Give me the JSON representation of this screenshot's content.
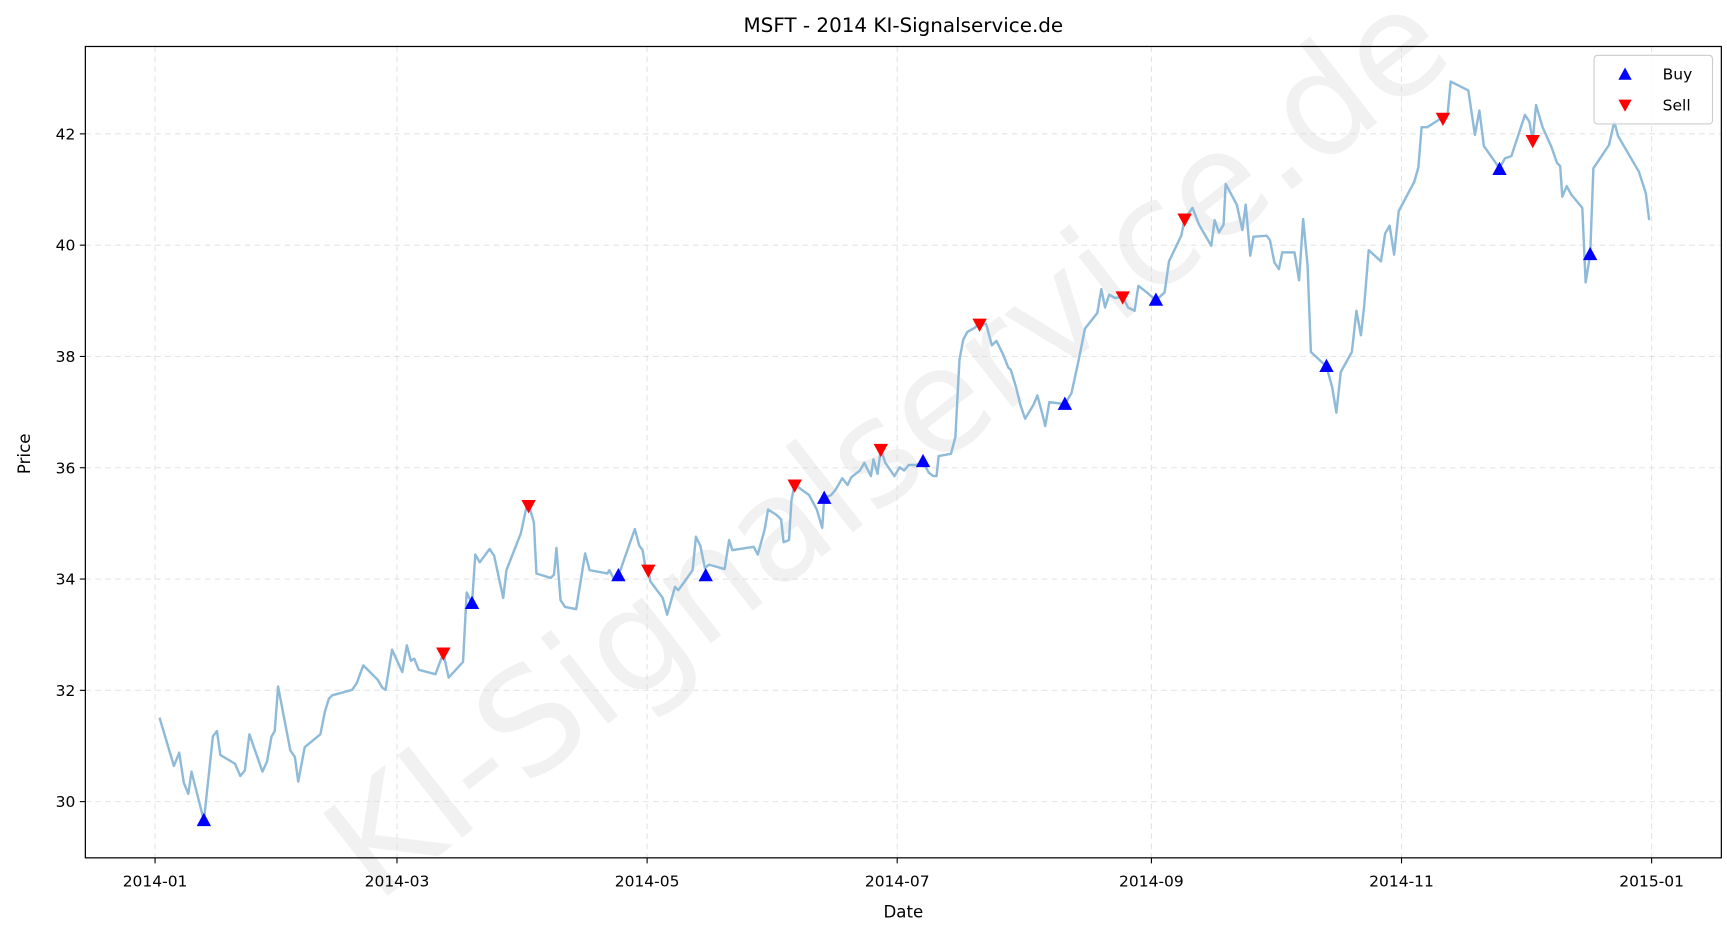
{
  "chart_data": {
    "type": "line",
    "title": "MSFT - 2014 KI-Signalservice.de",
    "xlabel": "Date",
    "ylabel": "Price",
    "watermark": "KI-Signalservice.de",
    "x_units": "days since 2014-01-01",
    "xlim": [
      -17,
      382
    ],
    "ylim": [
      28.99,
      43.57
    ],
    "grid": true,
    "legend_position": "top-right",
    "x_ticks": [
      {
        "day": 0,
        "label": "2014-01"
      },
      {
        "day": 59,
        "label": "2014-03"
      },
      {
        "day": 120,
        "label": "2014-05"
      },
      {
        "day": 181,
        "label": "2014-07"
      },
      {
        "day": 243,
        "label": "2014-09"
      },
      {
        "day": 304,
        "label": "2014-11"
      },
      {
        "day": 365,
        "label": "2015-01"
      }
    ],
    "y_ticks": [
      {
        "value": 30,
        "label": "30"
      },
      {
        "value": 32,
        "label": "32"
      },
      {
        "value": 34,
        "label": "34"
      },
      {
        "value": 36,
        "label": "36"
      },
      {
        "value": 38,
        "label": "38"
      },
      {
        "value": 40,
        "label": "40"
      },
      {
        "value": 42,
        "label": "42"
      }
    ],
    "colors": {
      "line": "#8fbbd9",
      "buy": "#0000ff",
      "sell": "#ff0000"
    },
    "series": [
      {
        "name": "Price",
        "points": [
          [
            1.1,
            31.51
          ],
          [
            4.6,
            30.64
          ],
          [
            5.9,
            30.88
          ],
          [
            7.0,
            30.34
          ],
          [
            8.1,
            30.14
          ],
          [
            8.9,
            30.54
          ],
          [
            11.9,
            29.66
          ],
          [
            14.1,
            31.17
          ],
          [
            15.1,
            31.27
          ],
          [
            15.9,
            30.84
          ],
          [
            19.5,
            30.68
          ],
          [
            20.8,
            30.46
          ],
          [
            21.9,
            30.56
          ],
          [
            23.0,
            31.21
          ],
          [
            26.2,
            30.54
          ],
          [
            27.3,
            30.72
          ],
          [
            28.4,
            31.17
          ],
          [
            29.2,
            31.27
          ],
          [
            30.0,
            32.07
          ],
          [
            33.0,
            30.92
          ],
          [
            34.1,
            30.8
          ],
          [
            34.9,
            30.36
          ],
          [
            36.5,
            30.98
          ],
          [
            40.3,
            31.21
          ],
          [
            41.4,
            31.61
          ],
          [
            42.4,
            31.85
          ],
          [
            43.2,
            31.91
          ],
          [
            48.1,
            32.01
          ],
          [
            49.2,
            32.13
          ],
          [
            50.8,
            32.45
          ],
          [
            54.3,
            32.19
          ],
          [
            55.4,
            32.05
          ],
          [
            56.2,
            32.01
          ],
          [
            57.8,
            32.73
          ],
          [
            60.3,
            32.33
          ],
          [
            61.4,
            32.81
          ],
          [
            62.4,
            32.53
          ],
          [
            63.2,
            32.57
          ],
          [
            64.3,
            32.37
          ],
          [
            68.4,
            32.29
          ],
          [
            70.3,
            32.67
          ],
          [
            71.6,
            32.23
          ],
          [
            75.1,
            32.51
          ],
          [
            76.0,
            33.76
          ],
          [
            77.3,
            33.56
          ],
          [
            78.1,
            34.44
          ],
          [
            79.2,
            34.3
          ],
          [
            81.6,
            34.54
          ],
          [
            82.7,
            34.42
          ],
          [
            84.9,
            33.66
          ],
          [
            85.7,
            34.16
          ],
          [
            89.2,
            34.82
          ],
          [
            90.6,
            35.3
          ],
          [
            91.1,
            35.35
          ],
          [
            92.4,
            35.02
          ],
          [
            93.0,
            34.1
          ],
          [
            96.5,
            34.02
          ],
          [
            97.3,
            34.08
          ],
          [
            97.9,
            34.56
          ],
          [
            98.9,
            33.62
          ],
          [
            100.0,
            33.5
          ],
          [
            102.7,
            33.46
          ],
          [
            104.9,
            34.46
          ],
          [
            106.0,
            34.16
          ],
          [
            110.3,
            34.1
          ],
          [
            110.8,
            34.16
          ],
          [
            111.9,
            34.0
          ],
          [
            113.0,
            34.06
          ],
          [
            117.0,
            34.9
          ],
          [
            118.1,
            34.6
          ],
          [
            118.9,
            34.52
          ],
          [
            119.5,
            34.26
          ],
          [
            120.3,
            34.16
          ],
          [
            120.8,
            33.96
          ],
          [
            123.8,
            33.66
          ],
          [
            124.9,
            33.36
          ],
          [
            126.8,
            33.86
          ],
          [
            127.6,
            33.8
          ],
          [
            129.2,
            33.96
          ],
          [
            131.1,
            34.16
          ],
          [
            131.9,
            34.76
          ],
          [
            133.0,
            34.6
          ],
          [
            134.1,
            34.2
          ],
          [
            135.1,
            34.26
          ],
          [
            138.9,
            34.18
          ],
          [
            140.0,
            34.7
          ],
          [
            140.8,
            34.52
          ],
          [
            146.0,
            34.58
          ],
          [
            147.0,
            34.44
          ],
          [
            148.7,
            34.9
          ],
          [
            149.5,
            35.25
          ],
          [
            151.6,
            35.15
          ],
          [
            152.7,
            35.07
          ],
          [
            153.3,
            34.66
          ],
          [
            154.6,
            34.7
          ],
          [
            155.2,
            35.41
          ],
          [
            156.0,
            35.71
          ],
          [
            157.6,
            35.61
          ],
          [
            159.5,
            35.51
          ],
          [
            161.4,
            35.25
          ],
          [
            162.7,
            34.92
          ],
          [
            163.2,
            35.45
          ],
          [
            164.9,
            35.51
          ],
          [
            166.0,
            35.61
          ],
          [
            166.8,
            35.71
          ],
          [
            167.6,
            35.81
          ],
          [
            168.9,
            35.69
          ],
          [
            169.8,
            35.83
          ],
          [
            171.9,
            35.95
          ],
          [
            173.0,
            36.09
          ],
          [
            173.5,
            36.01
          ],
          [
            174.6,
            35.85
          ],
          [
            175.2,
            36.15
          ],
          [
            176.2,
            35.89
          ],
          [
            177.0,
            36.33
          ],
          [
            178.1,
            36.09
          ],
          [
            180.3,
            35.85
          ],
          [
            181.6,
            36.01
          ],
          [
            182.7,
            35.95
          ],
          [
            183.8,
            36.05
          ],
          [
            185.7,
            36.05
          ],
          [
            187.3,
            36.11
          ],
          [
            188.7,
            35.91
          ],
          [
            189.8,
            35.85
          ],
          [
            190.6,
            35.85
          ],
          [
            191.1,
            36.21
          ],
          [
            194.1,
            36.25
          ],
          [
            195.2,
            36.55
          ],
          [
            196.2,
            37.94
          ],
          [
            197.1,
            38.3
          ],
          [
            198.1,
            38.44
          ],
          [
            200.0,
            38.52
          ],
          [
            201.1,
            38.6
          ],
          [
            202.7,
            38.58
          ],
          [
            204.1,
            38.2
          ],
          [
            205.2,
            38.28
          ],
          [
            206.8,
            38.04
          ],
          [
            208.1,
            37.8
          ],
          [
            208.7,
            37.76
          ],
          [
            210.0,
            37.44
          ],
          [
            211.1,
            37.12
          ],
          [
            212.2,
            36.88
          ],
          [
            214.3,
            37.14
          ],
          [
            215.2,
            37.3
          ],
          [
            216.5,
            36.94
          ],
          [
            217.1,
            36.75
          ],
          [
            218.1,
            37.18
          ],
          [
            220.3,
            37.16
          ],
          [
            221.9,
            37.14
          ],
          [
            223.5,
            37.34
          ],
          [
            225.2,
            37.92
          ],
          [
            226.8,
            38.5
          ],
          [
            229.8,
            38.78
          ],
          [
            230.8,
            39.21
          ],
          [
            231.7,
            38.88
          ],
          [
            232.7,
            39.11
          ],
          [
            234.1,
            39.05
          ],
          [
            236.0,
            39.07
          ],
          [
            237.3,
            38.88
          ],
          [
            238.9,
            38.82
          ],
          [
            239.8,
            39.27
          ],
          [
            241.9,
            39.15
          ],
          [
            244.1,
            39.01
          ],
          [
            246.2,
            39.15
          ],
          [
            247.3,
            39.71
          ],
          [
            250.3,
            40.17
          ],
          [
            251.1,
            40.47
          ],
          [
            253.0,
            40.67
          ],
          [
            254.6,
            40.37
          ],
          [
            257.6,
            39.99
          ],
          [
            258.4,
            40.45
          ],
          [
            259.5,
            40.23
          ],
          [
            260.6,
            40.37
          ],
          [
            261.1,
            41.1
          ],
          [
            263.8,
            40.73
          ],
          [
            265.2,
            40.27
          ],
          [
            266.0,
            40.73
          ],
          [
            267.1,
            39.81
          ],
          [
            267.9,
            40.15
          ],
          [
            271.1,
            40.17
          ],
          [
            271.9,
            40.09
          ],
          [
            273.0,
            39.69
          ],
          [
            274.1,
            39.57
          ],
          [
            274.9,
            39.87
          ],
          [
            277.9,
            39.87
          ],
          [
            279.0,
            39.37
          ],
          [
            280.0,
            40.47
          ],
          [
            281.1,
            39.63
          ],
          [
            281.9,
            38.08
          ],
          [
            285.7,
            37.82
          ],
          [
            287.1,
            37.44
          ],
          [
            288.1,
            36.99
          ],
          [
            289.2,
            37.72
          ],
          [
            291.9,
            38.08
          ],
          [
            293.0,
            38.82
          ],
          [
            294.1,
            38.38
          ],
          [
            294.9,
            38.92
          ],
          [
            296.0,
            39.91
          ],
          [
            299.0,
            39.71
          ],
          [
            300.0,
            40.21
          ],
          [
            301.1,
            40.35
          ],
          [
            302.2,
            39.83
          ],
          [
            303.3,
            40.61
          ],
          [
            307.1,
            41.14
          ],
          [
            308.1,
            41.4
          ],
          [
            308.9,
            42.12
          ],
          [
            310.3,
            42.12
          ],
          [
            314.1,
            42.3
          ],
          [
            315.2,
            42.34
          ],
          [
            316.0,
            42.94
          ],
          [
            320.3,
            42.78
          ],
          [
            321.9,
            41.98
          ],
          [
            323.0,
            42.42
          ],
          [
            324.1,
            41.78
          ],
          [
            327.9,
            41.38
          ],
          [
            329.2,
            41.56
          ],
          [
            330.8,
            41.6
          ],
          [
            334.1,
            42.34
          ],
          [
            335.2,
            42.22
          ],
          [
            336.0,
            41.88
          ],
          [
            336.8,
            42.52
          ],
          [
            338.4,
            42.12
          ],
          [
            340.6,
            41.76
          ],
          [
            341.9,
            41.48
          ],
          [
            342.7,
            41.42
          ],
          [
            343.2,
            40.87
          ],
          [
            344.3,
            41.06
          ],
          [
            345.4,
            40.91
          ],
          [
            348.1,
            40.67
          ],
          [
            348.9,
            39.33
          ],
          [
            350.0,
            39.83
          ],
          [
            350.8,
            41.38
          ],
          [
            352.4,
            41.56
          ],
          [
            354.6,
            41.8
          ],
          [
            355.9,
            42.22
          ],
          [
            356.8,
            41.96
          ],
          [
            361.9,
            41.32
          ],
          [
            363.6,
            40.93
          ],
          [
            364.4,
            40.45
          ]
        ]
      },
      {
        "name": "Buy",
        "marker": "triangle-up",
        "points": [
          [
            11.9,
            29.66
          ],
          [
            77.3,
            33.56
          ],
          [
            113.0,
            34.06
          ],
          [
            134.3,
            34.06
          ],
          [
            163.2,
            35.45
          ],
          [
            187.3,
            36.11
          ],
          [
            221.9,
            37.14
          ],
          [
            244.1,
            39.01
          ],
          [
            285.7,
            37.82
          ],
          [
            327.9,
            41.36
          ],
          [
            350.0,
            39.83
          ]
        ]
      },
      {
        "name": "Sell",
        "marker": "triangle-down",
        "points": [
          [
            70.3,
            32.67
          ],
          [
            91.1,
            35.32
          ],
          [
            120.3,
            34.16
          ],
          [
            156.0,
            35.69
          ],
          [
            177.0,
            36.33
          ],
          [
            201.1,
            38.58
          ],
          [
            236.0,
            39.07
          ],
          [
            251.1,
            40.47
          ],
          [
            314.1,
            42.28
          ],
          [
            336.0,
            41.88
          ]
        ]
      }
    ],
    "legend": [
      {
        "label": "Buy",
        "marker": "triangle-up"
      },
      {
        "label": "Sell",
        "marker": "triangle-down"
      }
    ]
  }
}
